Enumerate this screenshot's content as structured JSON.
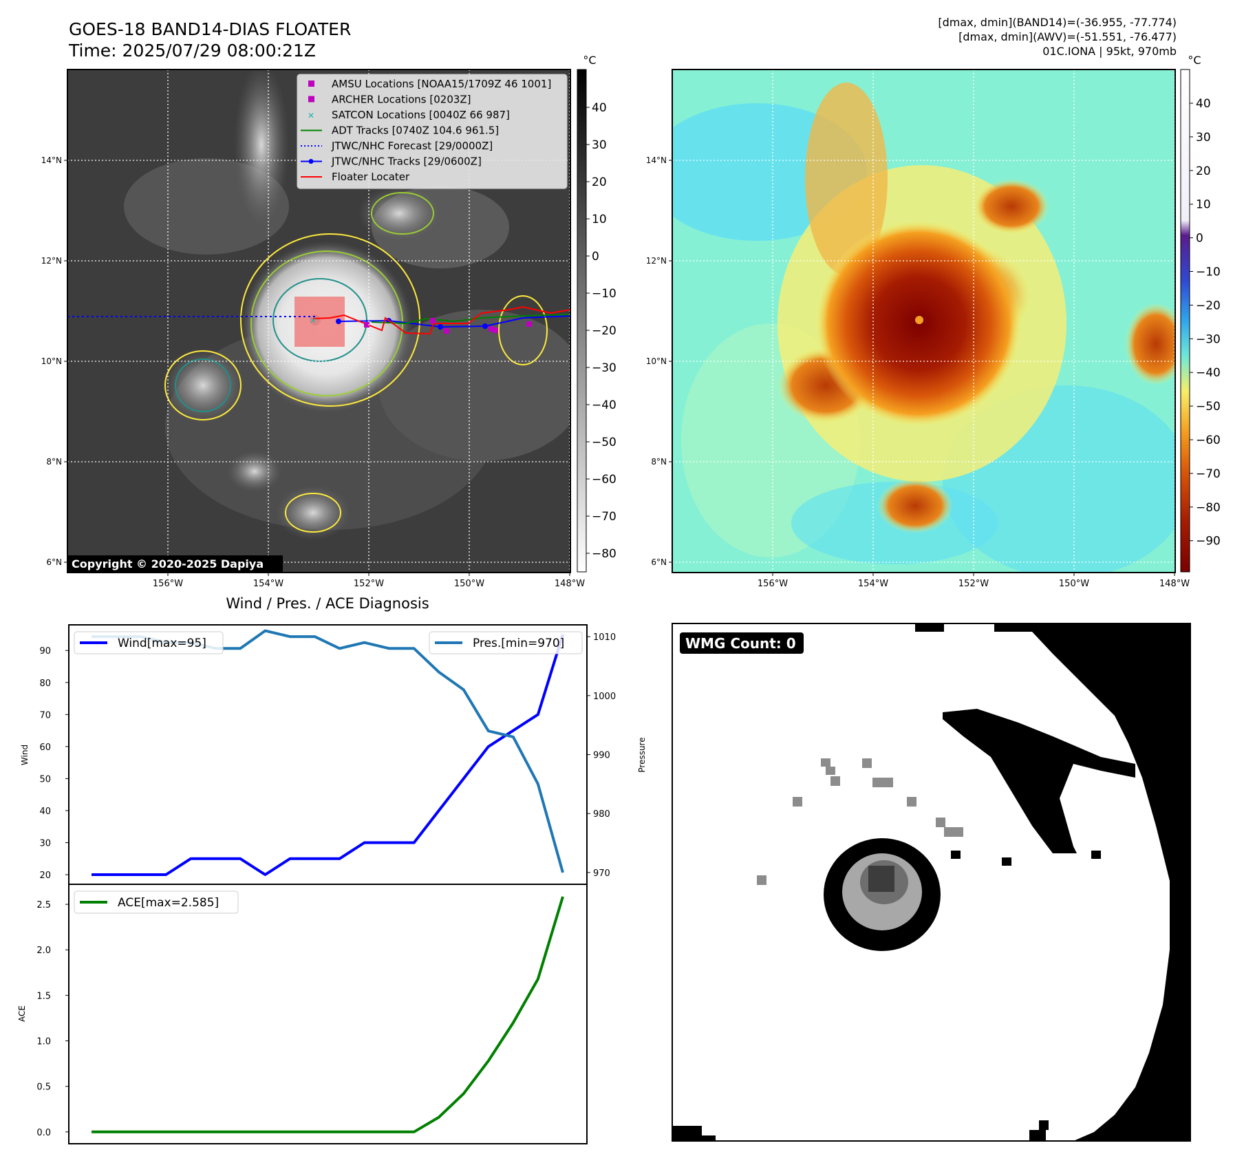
{
  "header": {
    "title": "GOES-18 BAND14-DIAS FLOATER",
    "time": "Time: 2025/07/29 08:00:21Z",
    "right_line1": "[dmax, dmin](BAND14)=(-36.955, -77.774)",
    "right_line2": "[dmax, dmin](AWV)=(-51.551, -76.477)",
    "right_line3": "01C.IONA | 95kt, 970mb"
  },
  "maps": {
    "lat_ticks": [
      "14°N",
      "12°N",
      "10°N",
      "8°N",
      "6°N"
    ],
    "lon_ticks": [
      "156°W",
      "154°W",
      "152°W",
      "150°W",
      "148°W"
    ],
    "copyright": "Copyright © 2020-2025 Dapiya",
    "colors": {
      "cold_gray": "#f2f2f2",
      "warm_gray": "#3a3a3a",
      "locater": "#f08080"
    }
  },
  "colorbar_gray": {
    "unit": "°C",
    "ticks": [
      "40",
      "30",
      "20",
      "10",
      "0",
      "−10",
      "−20",
      "−30",
      "−40",
      "−50",
      "−60",
      "−70",
      "−80"
    ]
  },
  "colorbar_color": {
    "unit": "°C",
    "ticks": [
      "40",
      "30",
      "20",
      "10",
      "0",
      "−10",
      "−20",
      "−30",
      "−40",
      "−50",
      "−60",
      "−70",
      "−80",
      "−90"
    ]
  },
  "legend": {
    "items": [
      {
        "label": "AMSU Locations [NOAA15/1709Z 46 1001]",
        "color": "#c000c0",
        "marker": "square"
      },
      {
        "label": "ARCHER Locations [0203Z]",
        "color": "#c000c0",
        "marker": "square"
      },
      {
        "label": "SATCON Locations [0040Z 66 987]",
        "color": "#20b2aa",
        "marker": "x"
      },
      {
        "label": "ADT Tracks [0740Z 104.6 961.5]",
        "color": "#008000",
        "marker": "line"
      },
      {
        "label": "JTWC/NHC Forecast [29/0000Z]",
        "color": "#0000ff",
        "marker": "dotted"
      },
      {
        "label": "JTWC/NHC Tracks [29/0600Z]",
        "color": "#0000ff",
        "marker": "line-dot"
      },
      {
        "label": "Floater Locater",
        "color": "#ff0000",
        "marker": "line"
      }
    ]
  },
  "wind_panel": {
    "title": "Wind / Pres. / ACE Diagnosis",
    "ylabel_left": "Wind",
    "ylabel_right": "Pressure",
    "legend_wind": "Wind[max=95]",
    "legend_pres": "Pres.[min=970]",
    "wind_ticks": [
      "90",
      "80",
      "70",
      "60",
      "50",
      "40",
      "30",
      "20"
    ],
    "pres_ticks": [
      "1010",
      "1000",
      "990",
      "980",
      "970"
    ]
  },
  "ace_panel": {
    "ylabel": "ACE",
    "legend": "ACE[max=2.585]",
    "ticks": [
      "2.5",
      "2.0",
      "1.5",
      "1.0",
      "0.5",
      "0.0"
    ]
  },
  "wmg_panel": {
    "badge": "WMG Count: 0"
  },
  "chart_data": [
    {
      "type": "line",
      "title": "Wind / Pres. / ACE Diagnosis",
      "x": [
        0,
        1,
        2,
        3,
        4,
        5,
        6,
        7,
        8,
        9,
        10,
        11,
        12,
        13,
        14,
        15,
        16,
        17,
        18,
        19
      ],
      "series": [
        {
          "name": "Wind[max=95]",
          "axis": "left",
          "color": "#0000ff",
          "values": [
            20,
            20,
            20,
            20,
            25,
            25,
            25,
            20,
            25,
            25,
            25,
            30,
            30,
            30,
            40,
            50,
            60,
            65,
            70,
            95
          ]
        },
        {
          "name": "Pres.[min=970]",
          "axis": "right",
          "color": "#1f77b4",
          "values": [
            1010,
            1010,
            1010,
            1009,
            1009,
            1008,
            1008,
            1011,
            1010,
            1010,
            1008,
            1009,
            1008,
            1008,
            1004,
            1001,
            994,
            993,
            985,
            970
          ]
        }
      ],
      "ylabel": "Wind",
      "y2label": "Pressure",
      "ylim": [
        17,
        98
      ],
      "y2lim": [
        968,
        1012
      ]
    },
    {
      "type": "line",
      "x": [
        0,
        1,
        2,
        3,
        4,
        5,
        6,
        7,
        8,
        9,
        10,
        11,
        12,
        13,
        14,
        15,
        16,
        17,
        18,
        19
      ],
      "series": [
        {
          "name": "ACE[max=2.585]",
          "color": "#008000",
          "values": [
            0,
            0,
            0,
            0,
            0,
            0,
            0,
            0,
            0,
            0,
            0,
            0,
            0,
            0,
            0.16,
            0.42,
            0.78,
            1.2,
            1.68,
            2.585
          ]
        }
      ],
      "ylabel": "ACE",
      "ylim": [
        -0.13,
        2.72
      ]
    }
  ]
}
